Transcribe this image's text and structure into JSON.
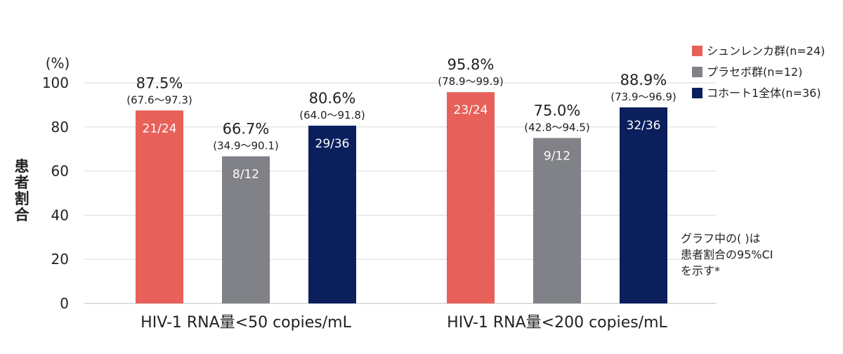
{
  "chart_data": {
    "type": "bar",
    "ylabel": "患者割合",
    "yunit": "(%)",
    "ylim": [
      0,
      100
    ],
    "yticks": [
      "0",
      "20",
      "40",
      "60",
      "80",
      "100"
    ],
    "grid": true,
    "legend_position": "top-right",
    "categories": [
      "HIV-1 RNA量<50 copies/mL",
      "HIV-1 RNA量<200 copies/mL"
    ],
    "series": [
      {
        "name": "シュンレンカ群(n=24)",
        "color": "#e8605a",
        "values": [
          87.5,
          95.8
        ],
        "value_labels": [
          "87.5%",
          "95.8%"
        ],
        "ci_labels": [
          "(67.6〜97.3)",
          "(78.9〜99.9)"
        ],
        "counts": [
          "21/24",
          "23/24"
        ]
      },
      {
        "name": "プラセボ群(n=12)",
        "color": "#808287",
        "values": [
          66.7,
          75.0
        ],
        "value_labels": [
          "66.7%",
          "75.0%"
        ],
        "ci_labels": [
          "(34.9〜90.1)",
          "(42.8〜94.5)"
        ],
        "counts": [
          "8/12",
          "9/12"
        ]
      },
      {
        "name": "コホート1全体(n=36)",
        "color": "#0b1f5c",
        "values": [
          80.6,
          88.9
        ],
        "value_labels": [
          "80.6%",
          "88.9%"
        ],
        "ci_labels": [
          "(64.0〜91.8)",
          "(73.9〜96.9)"
        ],
        "counts": [
          "29/36",
          "32/36"
        ]
      }
    ],
    "annotation": [
      "グラフ中の( )は",
      "患者割合の95%CI",
      "を示す*"
    ]
  }
}
